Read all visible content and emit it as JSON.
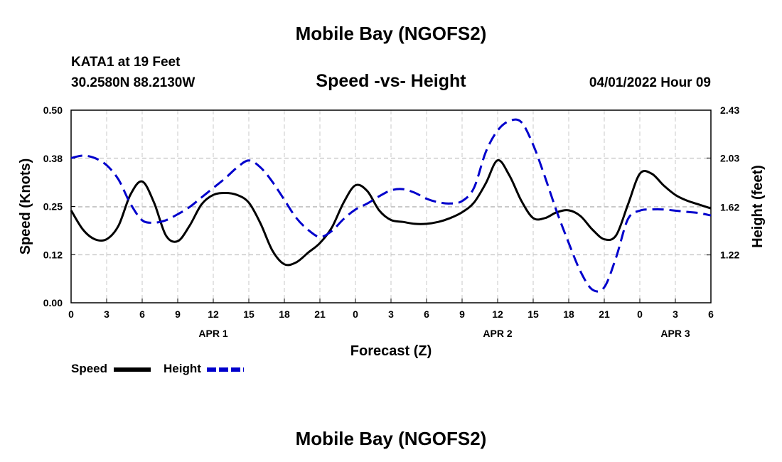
{
  "header": {
    "title": "Mobile Bay (NGOFS2)",
    "station": "KATA1 at 19 Feet",
    "coords": "30.2580N  88.2130W",
    "subtitle": "Speed -vs- Height",
    "datetime": "04/01/2022 Hour 09"
  },
  "footer": {
    "title": "Mobile Bay (NGOFS2)"
  },
  "chart_data": {
    "type": "line",
    "title": "Speed -vs- Height",
    "xlabel": "Forecast (Z)",
    "ylabel_left": "Speed (Knots)",
    "ylabel_right": "Height (feet)",
    "x_range": [
      0,
      54
    ],
    "xticks": {
      "values": [
        0,
        3,
        6,
        9,
        12,
        15,
        18,
        21,
        24,
        27,
        30,
        33,
        36,
        39,
        42,
        45,
        48,
        51,
        54
      ],
      "labels": [
        "0",
        "3",
        "6",
        "9",
        "12",
        "15",
        "18",
        "21",
        "0",
        "3",
        "6",
        "9",
        "12",
        "15",
        "18",
        "21",
        "0",
        "3",
        "6"
      ]
    },
    "date_labels": [
      {
        "x": 12,
        "text": "APR 1"
      },
      {
        "x": 36,
        "text": "APR 2"
      },
      {
        "x": 51,
        "text": "APR 3"
      }
    ],
    "ylim_left": [
      0,
      0.5
    ],
    "yticks_left": {
      "values": [
        0,
        0.125,
        0.25,
        0.375,
        0.5
      ],
      "labels": [
        "0.00",
        "0.12",
        "0.25",
        "0.38",
        "0.50"
      ]
    },
    "ylim_right": [
      0.82,
      2.43
    ],
    "yticks_right": {
      "values": [
        1.22,
        1.62,
        2.03,
        2.43
      ],
      "labels": [
        "1.22",
        "1.62",
        "2.03",
        "2.43"
      ]
    },
    "grid": true,
    "legend_position": "bottom-left",
    "series": [
      {
        "name": "Speed",
        "axis": "left",
        "color": "#000000",
        "dash": "solid",
        "x": [
          0,
          1,
          2,
          3,
          4,
          5,
          6,
          7,
          8,
          9,
          10,
          11,
          12,
          13,
          14,
          15,
          16,
          17,
          18,
          19,
          20,
          21,
          22,
          23,
          24,
          25,
          26,
          27,
          28,
          29,
          30,
          31,
          32,
          33,
          34,
          35,
          36,
          37,
          38,
          39,
          40,
          41,
          42,
          43,
          44,
          45,
          46,
          47,
          48,
          49,
          50,
          51,
          52,
          53,
          54
        ],
        "values": [
          0.24,
          0.19,
          0.165,
          0.165,
          0.2,
          0.28,
          0.315,
          0.26,
          0.175,
          0.16,
          0.2,
          0.255,
          0.28,
          0.285,
          0.28,
          0.26,
          0.205,
          0.135,
          0.1,
          0.105,
          0.13,
          0.155,
          0.195,
          0.26,
          0.305,
          0.29,
          0.24,
          0.215,
          0.21,
          0.205,
          0.205,
          0.21,
          0.22,
          0.235,
          0.26,
          0.31,
          0.37,
          0.33,
          0.265,
          0.22,
          0.22,
          0.235,
          0.24,
          0.225,
          0.19,
          0.165,
          0.175,
          0.255,
          0.335,
          0.335,
          0.305,
          0.28,
          0.265,
          0.255,
          0.245
        ]
      },
      {
        "name": "Height",
        "axis": "right",
        "color": "#0000cc",
        "dash": "dashed",
        "x": [
          0,
          1,
          2,
          3,
          4,
          5,
          6,
          7,
          8,
          9,
          10,
          11,
          12,
          13,
          14,
          15,
          16,
          17,
          18,
          19,
          20,
          21,
          22,
          23,
          24,
          25,
          26,
          27,
          28,
          29,
          30,
          31,
          32,
          33,
          34,
          35,
          36,
          37,
          38,
          39,
          40,
          41,
          42,
          43,
          44,
          45,
          46,
          47,
          48,
          49,
          50,
          51,
          52,
          53,
          54
        ],
        "values": [
          2.03,
          2.05,
          2.03,
          1.97,
          1.85,
          1.65,
          1.51,
          1.49,
          1.51,
          1.56,
          1.62,
          1.7,
          1.78,
          1.86,
          1.95,
          2.01,
          1.95,
          1.83,
          1.68,
          1.53,
          1.43,
          1.37,
          1.42,
          1.52,
          1.6,
          1.65,
          1.71,
          1.76,
          1.77,
          1.74,
          1.69,
          1.66,
          1.65,
          1.67,
          1.78,
          2.08,
          2.26,
          2.34,
          2.33,
          2.14,
          1.87,
          1.58,
          1.32,
          1.08,
          0.93,
          0.95,
          1.2,
          1.52,
          1.59,
          1.6,
          1.6,
          1.59,
          1.58,
          1.57,
          1.55
        ]
      }
    ]
  }
}
